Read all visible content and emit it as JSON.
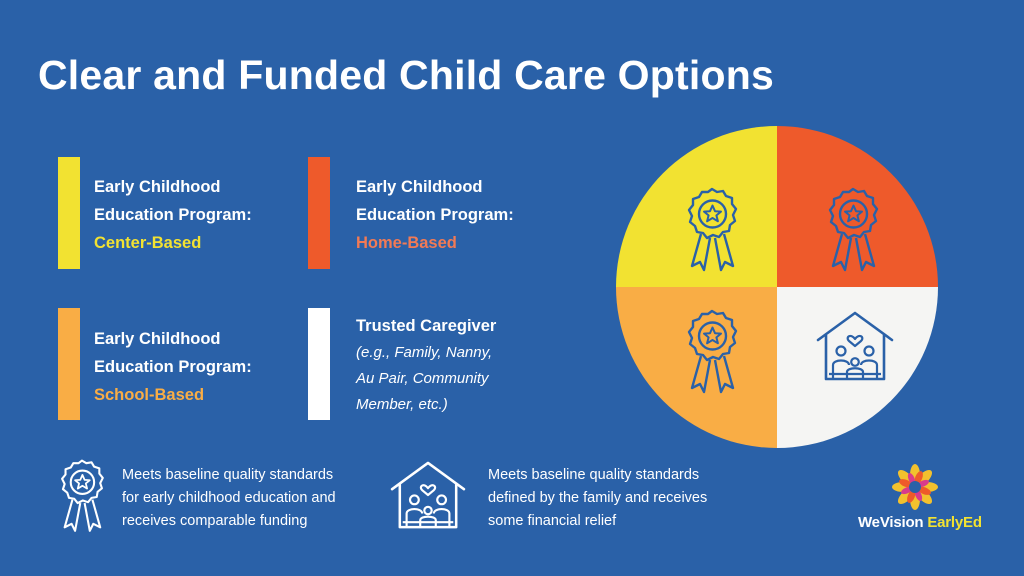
{
  "title": "Clear and Funded Child Care Options",
  "colors": {
    "background": "#2a61a8",
    "yellow": "#f2e231",
    "red": "#ee5a2b",
    "orange": "#f9ad45",
    "white": "#f5f5f3",
    "icon_stroke": "#2a61a8"
  },
  "cards": [
    {
      "line1": "Early Childhood",
      "line2": "Education Program:",
      "highlight": "Center-Based"
    },
    {
      "line1": "Early Childhood",
      "line2": "Education Program:",
      "highlight": "Home-Based"
    },
    {
      "line1": "Early Childhood",
      "line2": "Education Program:",
      "highlight": "School-Based"
    },
    {
      "line1": "Trusted Caregiver",
      "sub1": "(e.g., Family, Nanny,",
      "sub2": "Au Pair, Community",
      "sub3": "Member, etc.)"
    }
  ],
  "pie": {
    "quadrants": [
      "center-based (award ribbon icon)",
      "home-based (award ribbon icon)",
      "school-based (award ribbon icon)",
      "trusted caregiver (family house icon)"
    ]
  },
  "legend": [
    {
      "icon": "award-ribbon-icon",
      "line1": "Meets baseline quality standards",
      "line2": "for early childhood education and",
      "line3": "receives comparable funding"
    },
    {
      "icon": "family-house-icon",
      "line1": "Meets baseline quality standards",
      "line2": "defined by the family and receives",
      "line3": "some financial relief"
    }
  ],
  "logo": {
    "part1": "WeVision ",
    "part2": "EarlyEd"
  }
}
